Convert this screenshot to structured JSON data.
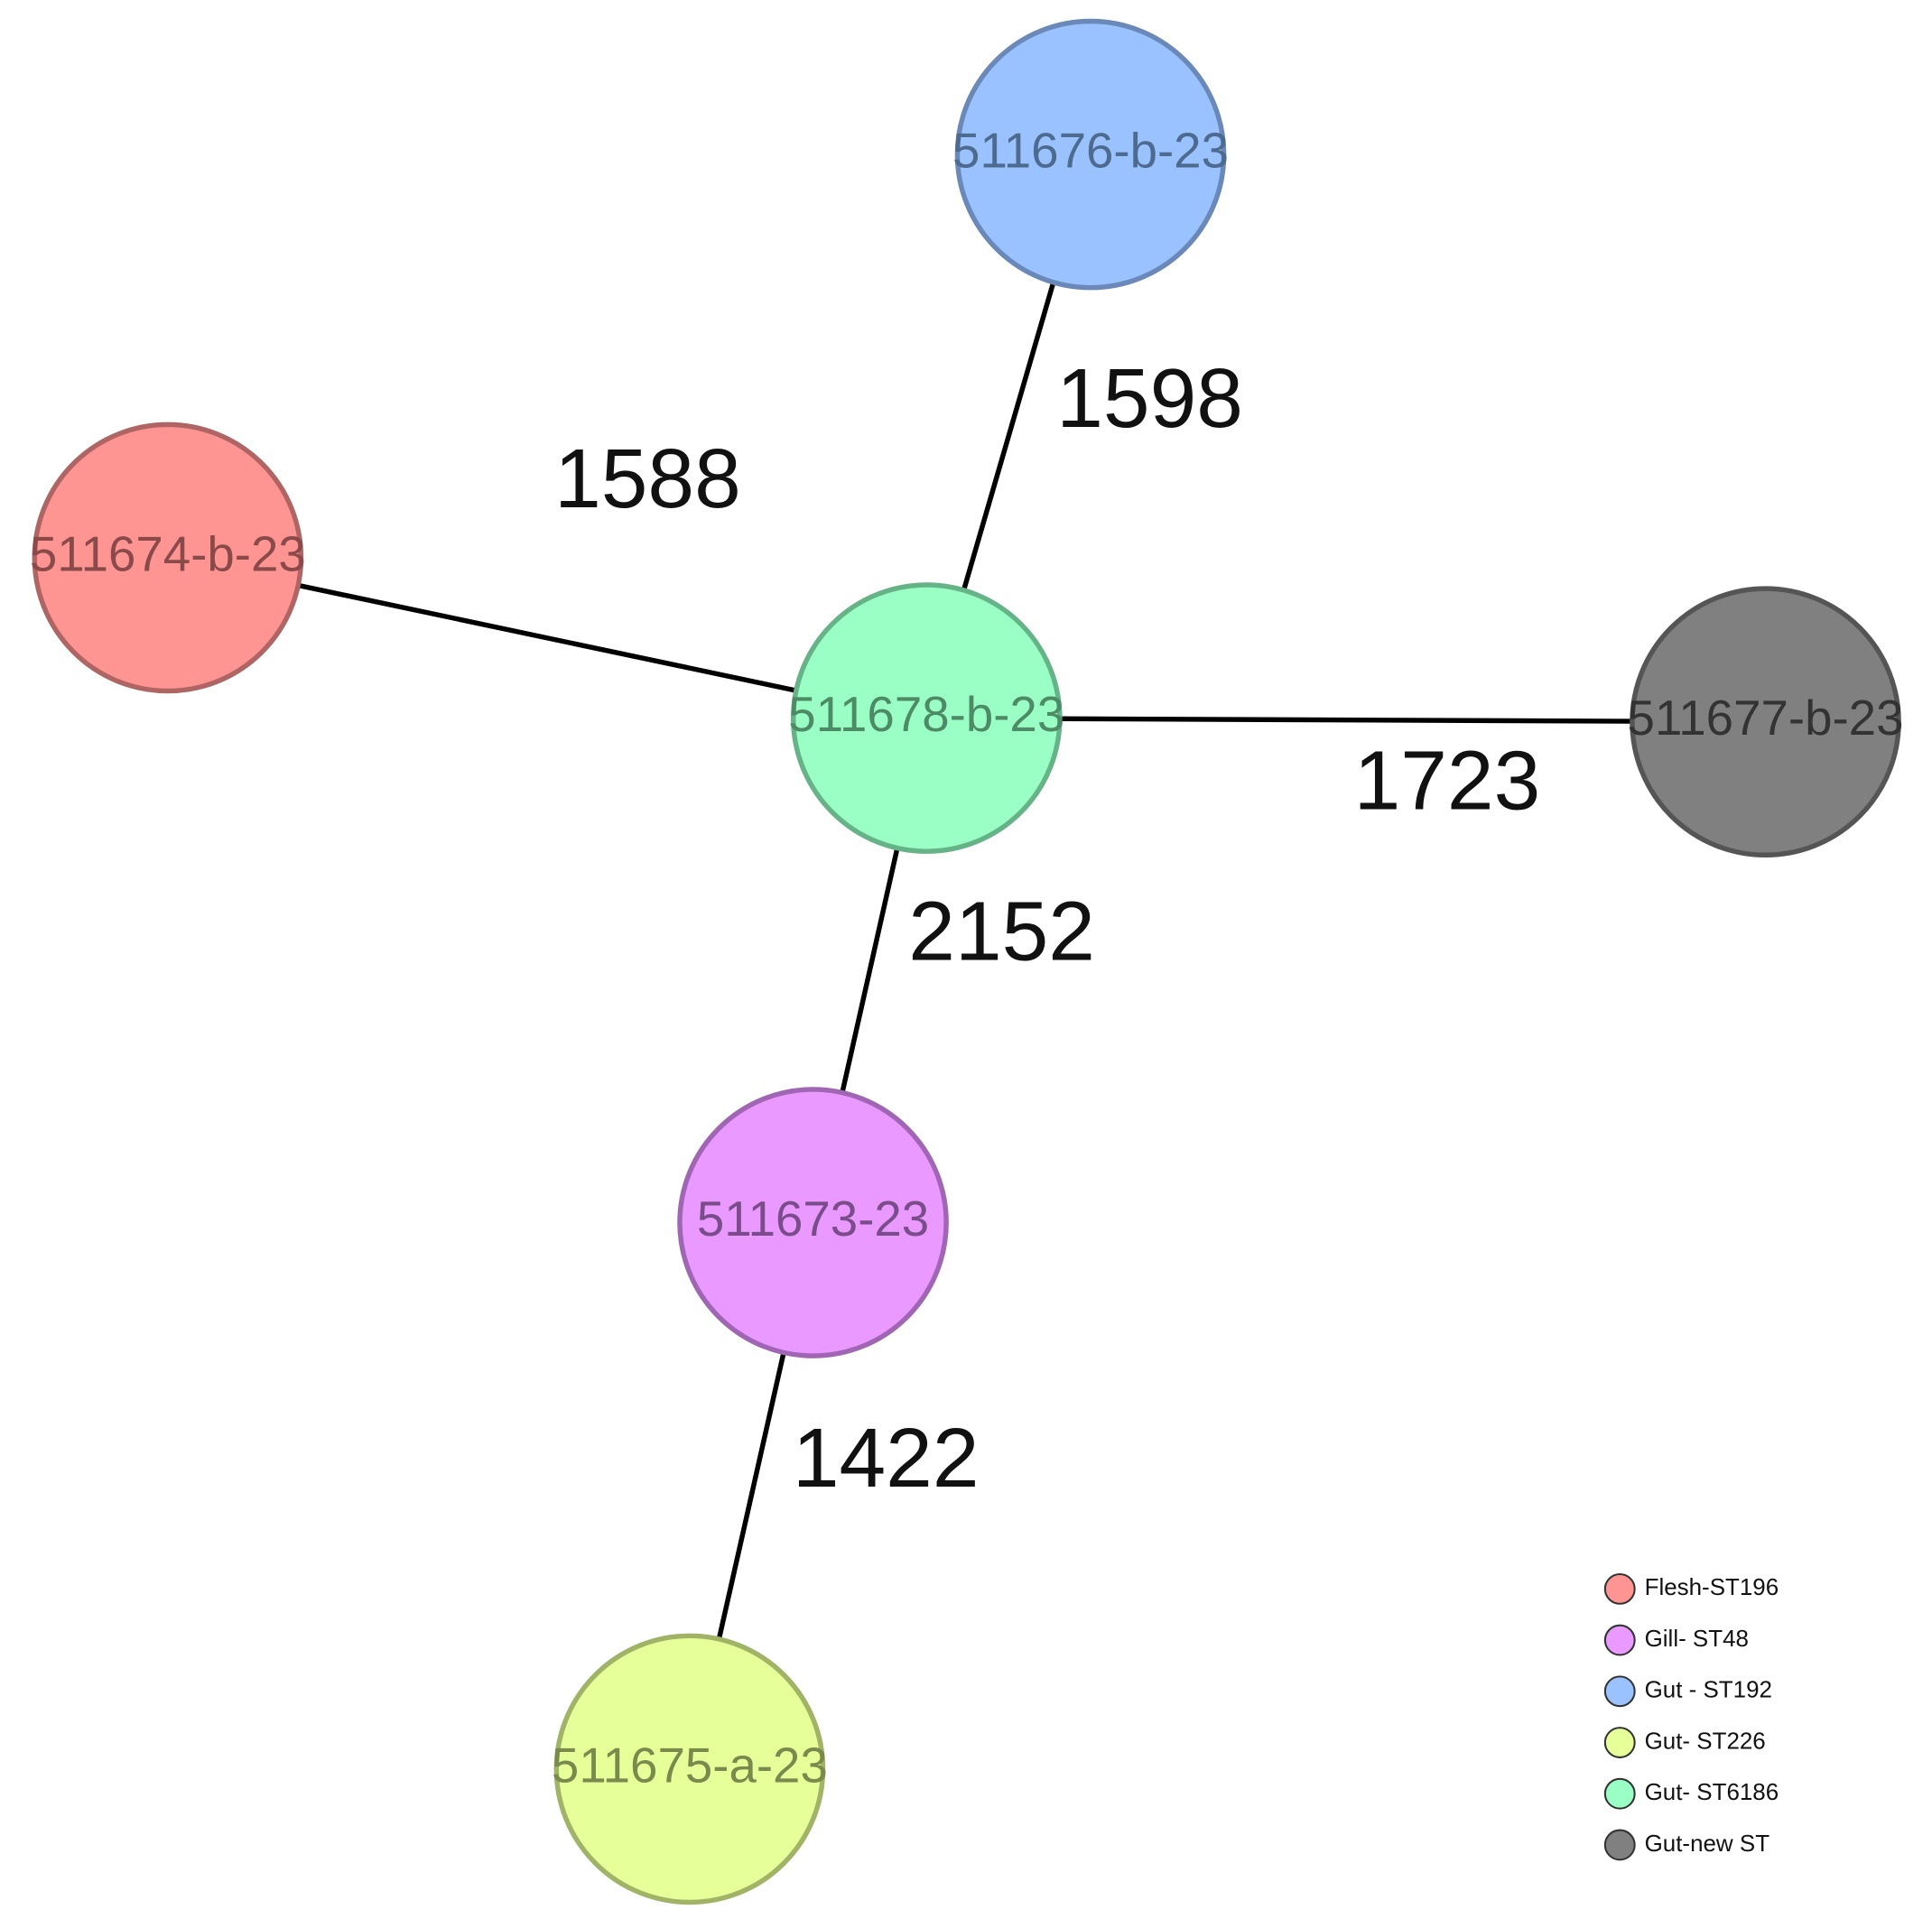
{
  "nodes": [
    {
      "label": "511676-b-23",
      "color": "#99c2ff"
    },
    {
      "label": "511674-b-23",
      "color": "#ff9593"
    },
    {
      "label": "511678-b-23",
      "color": "#99ffc4"
    },
    {
      "label": "511677-b-23",
      "color": "#808080"
    },
    {
      "label": "511673-23",
      "color": "#e999ff"
    },
    {
      "label": "511675-a-23",
      "color": "#e7ff99"
    }
  ],
  "edges": [
    {
      "label": "1598"
    },
    {
      "label": "1588"
    },
    {
      "label": "1723"
    },
    {
      "label": "2152"
    },
    {
      "label": "1422"
    }
  ],
  "legend": [
    {
      "label": "Flesh-ST196",
      "color": "#ff9593"
    },
    {
      "label": "Gill- ST48",
      "color": "#e999ff"
    },
    {
      "label": "Gut - ST192",
      "color": "#99c2ff"
    },
    {
      "label": "Gut- ST226",
      "color": "#e7ff99"
    },
    {
      "label": "Gut- ST6186",
      "color": "#99ffc4"
    },
    {
      "label": "Gut-new ST",
      "color": "#808080"
    }
  ]
}
